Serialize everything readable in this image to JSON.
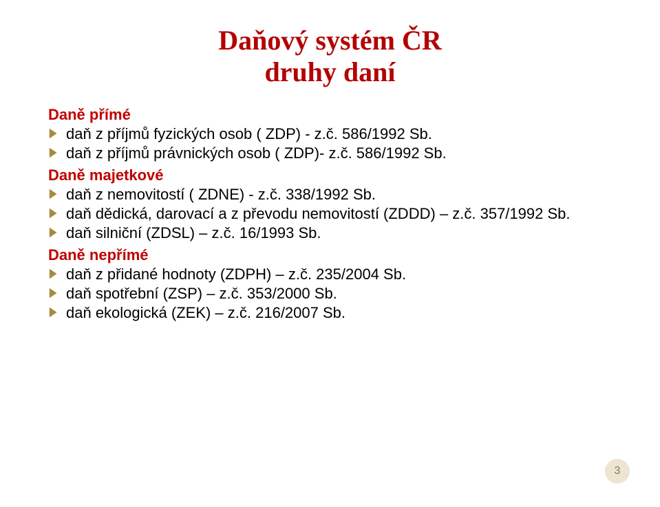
{
  "colors": {
    "title": "#b40101",
    "section_prime": "#c00000",
    "section_majetkove": "#c00000",
    "section_neprime": "#c00000",
    "bullet": "#a58b42",
    "body_text": "#000000",
    "pagenum_bg": "#ede4d2",
    "pagenum_text": "#8b7a4e"
  },
  "fonts": {
    "title_size": 40,
    "section_size": 22,
    "item_size": 22,
    "pagenum_size": 16
  },
  "layout": {
    "bullet_size": 18
  },
  "title": {
    "line1": "Daňový systém ČR",
    "line2": "druhy daní"
  },
  "sections": [
    {
      "heading": "Daně přímé",
      "heading_color_key": "section_prime",
      "items": [
        "daň z příjmů fyzických osob ( ZDP) - z.č. 586/1992 Sb.",
        "daň z příjmů právnických osob ( ZDP)- z.č. 586/1992 Sb."
      ]
    },
    {
      "heading": "Daně majetkové",
      "heading_color_key": "section_majetkove",
      "items": [
        "daň z nemovitostí ( ZDNE) -  z.č. 338/1992 Sb.",
        "daň dědická, darovací a z převodu nemovitostí (ZDDD) – z.č. 357/1992 Sb.",
        "daň silniční (ZDSL)   – z.č. 16/1993 Sb."
      ]
    },
    {
      "heading": "Daně nepřímé",
      "heading_color_key": "section_neprime",
      "items": [
        "daň z přidané hodnoty (ZDPH) – z.č. 235/2004 Sb.",
        "daň spotřební (ZSP) – z.č. 353/2000 Sb.",
        "daň ekologická (ZEK) – z.č. 216/2007 Sb."
      ]
    }
  ],
  "page_number": "3"
}
